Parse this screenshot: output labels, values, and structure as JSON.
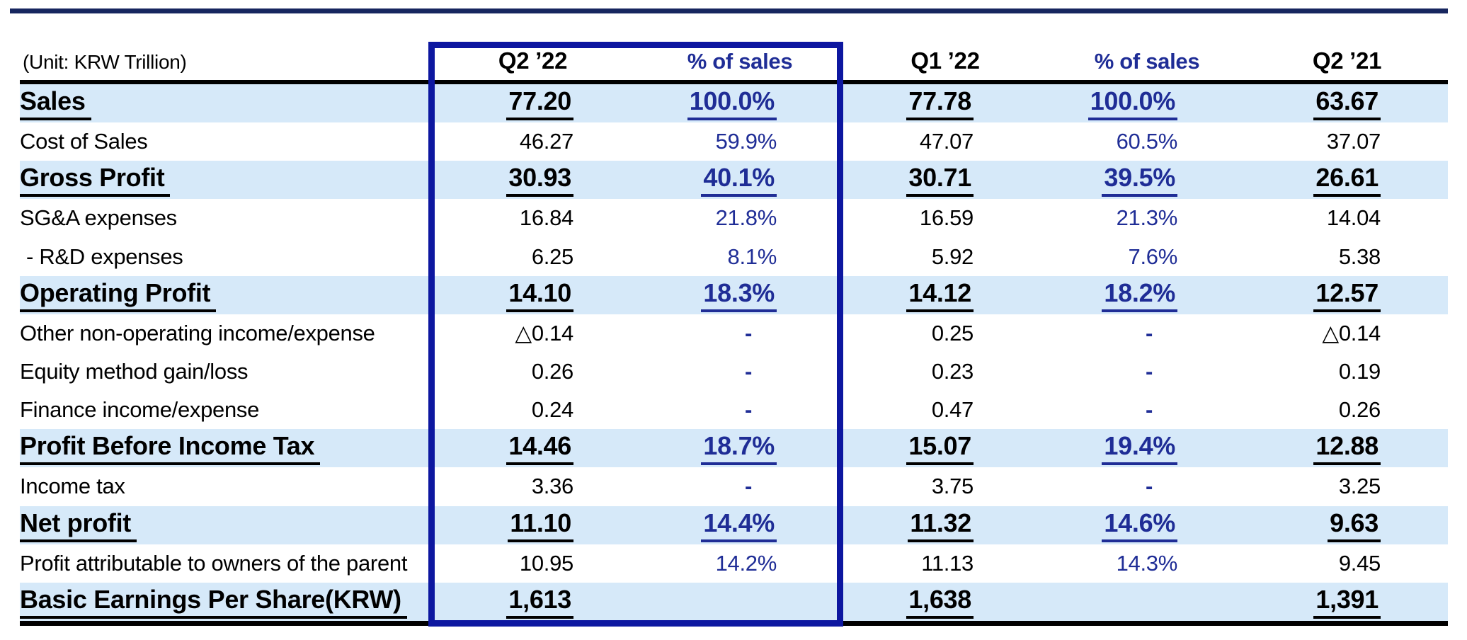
{
  "unit_label": "(Unit: KRW Trillion)",
  "columns": [
    "Q2 ’22",
    "% of sales",
    "Q1 ’22",
    "% of sales",
    "Q2 ’21"
  ],
  "rows": [
    {
      "label": "Sales",
      "bold": true,
      "indent": false,
      "values": [
        "77.20",
        "100.0%",
        "77.78",
        "100.0%",
        "63.67"
      ]
    },
    {
      "label": "Cost of Sales",
      "bold": false,
      "indent": false,
      "values": [
        "46.27",
        "59.9%",
        "47.07",
        "60.5%",
        "37.07"
      ]
    },
    {
      "label": "Gross Profit",
      "bold": true,
      "indent": false,
      "values": [
        "30.93",
        "40.1%",
        "30.71",
        "39.5%",
        "26.61"
      ]
    },
    {
      "label": "SG&A expenses",
      "bold": false,
      "indent": false,
      "values": [
        "16.84",
        "21.8%",
        "16.59",
        "21.3%",
        "14.04"
      ]
    },
    {
      "label": "- R&D expenses",
      "bold": false,
      "indent": true,
      "values": [
        "6.25",
        "8.1%",
        "5.92",
        "7.6%",
        "5.38"
      ]
    },
    {
      "label": "Operating Profit",
      "bold": true,
      "indent": false,
      "values": [
        "14.10",
        "18.3%",
        "14.12",
        "18.2%",
        "12.57"
      ]
    },
    {
      "label": "Other non-operating income/expense",
      "bold": false,
      "indent": false,
      "values": [
        "△0.14",
        "-",
        "0.25",
        "-",
        "△0.14"
      ]
    },
    {
      "label": "Equity method gain/loss",
      "bold": false,
      "indent": false,
      "values": [
        "0.26",
        "-",
        "0.23",
        "-",
        "0.19"
      ]
    },
    {
      "label": "Finance income/expense",
      "bold": false,
      "indent": false,
      "values": [
        "0.24",
        "-",
        "0.47",
        "-",
        "0.26"
      ]
    },
    {
      "label": "Profit Before Income Tax",
      "bold": true,
      "indent": false,
      "values": [
        "14.46",
        "18.7%",
        "15.07",
        "19.4%",
        "12.88"
      ]
    },
    {
      "label": "Income tax",
      "bold": false,
      "indent": false,
      "values": [
        "3.36",
        "-",
        "3.75",
        "-",
        "3.25"
      ]
    },
    {
      "label": "Net profit",
      "bold": true,
      "indent": false,
      "values": [
        "11.10",
        "14.4%",
        "11.32",
        "14.6%",
        "9.63"
      ]
    },
    {
      "label": "Profit attributable to owners of the parent",
      "bold": false,
      "indent": false,
      "values": [
        "10.95",
        "14.2%",
        "11.13",
        "14.3%",
        "9.45"
      ]
    },
    {
      "label": "Basic Earnings Per Share(KRW)",
      "bold": true,
      "indent": false,
      "values": [
        "1,613",
        "",
        "1,638",
        "",
        "1,391"
      ]
    }
  ],
  "colors": {
    "accent_bar": "#17265f",
    "highlight_box_border": "#0d17a0",
    "navy_text": "#1f2d96",
    "row_highlight": "#d6e9f9",
    "line": "#000000"
  }
}
